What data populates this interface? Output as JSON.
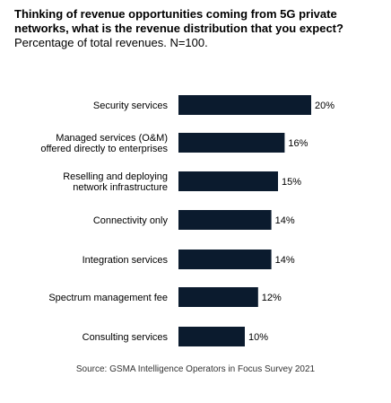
{
  "chart_data": {
    "type": "bar",
    "orientation": "horizontal",
    "title": "Thinking of revenue opportunities coming from 5G private networks, what is the revenue distribution that you expect?",
    "subtitle": "Percentage of total revenues. N=100.",
    "categories": [
      [
        "Security services"
      ],
      [
        "Managed services (O&M)",
        "offered directly to enterprises"
      ],
      [
        "Reselling and deploying",
        "network infrastructure"
      ],
      [
        "Connectivity only"
      ],
      [
        "Integration services"
      ],
      [
        "Spectrum management fee"
      ],
      [
        "Consulting services"
      ]
    ],
    "values": [
      20,
      16,
      15,
      14,
      14,
      12,
      10
    ],
    "value_labels": [
      "20%",
      "16%",
      "15%",
      "14%",
      "14%",
      "12%",
      "10%"
    ],
    "xlim": [
      0,
      20
    ],
    "bar_color": "#0b1b2e",
    "grid": false,
    "legend": "none",
    "source": "Source: GSMA Intelligence Operators in Focus Survey 2021"
  }
}
